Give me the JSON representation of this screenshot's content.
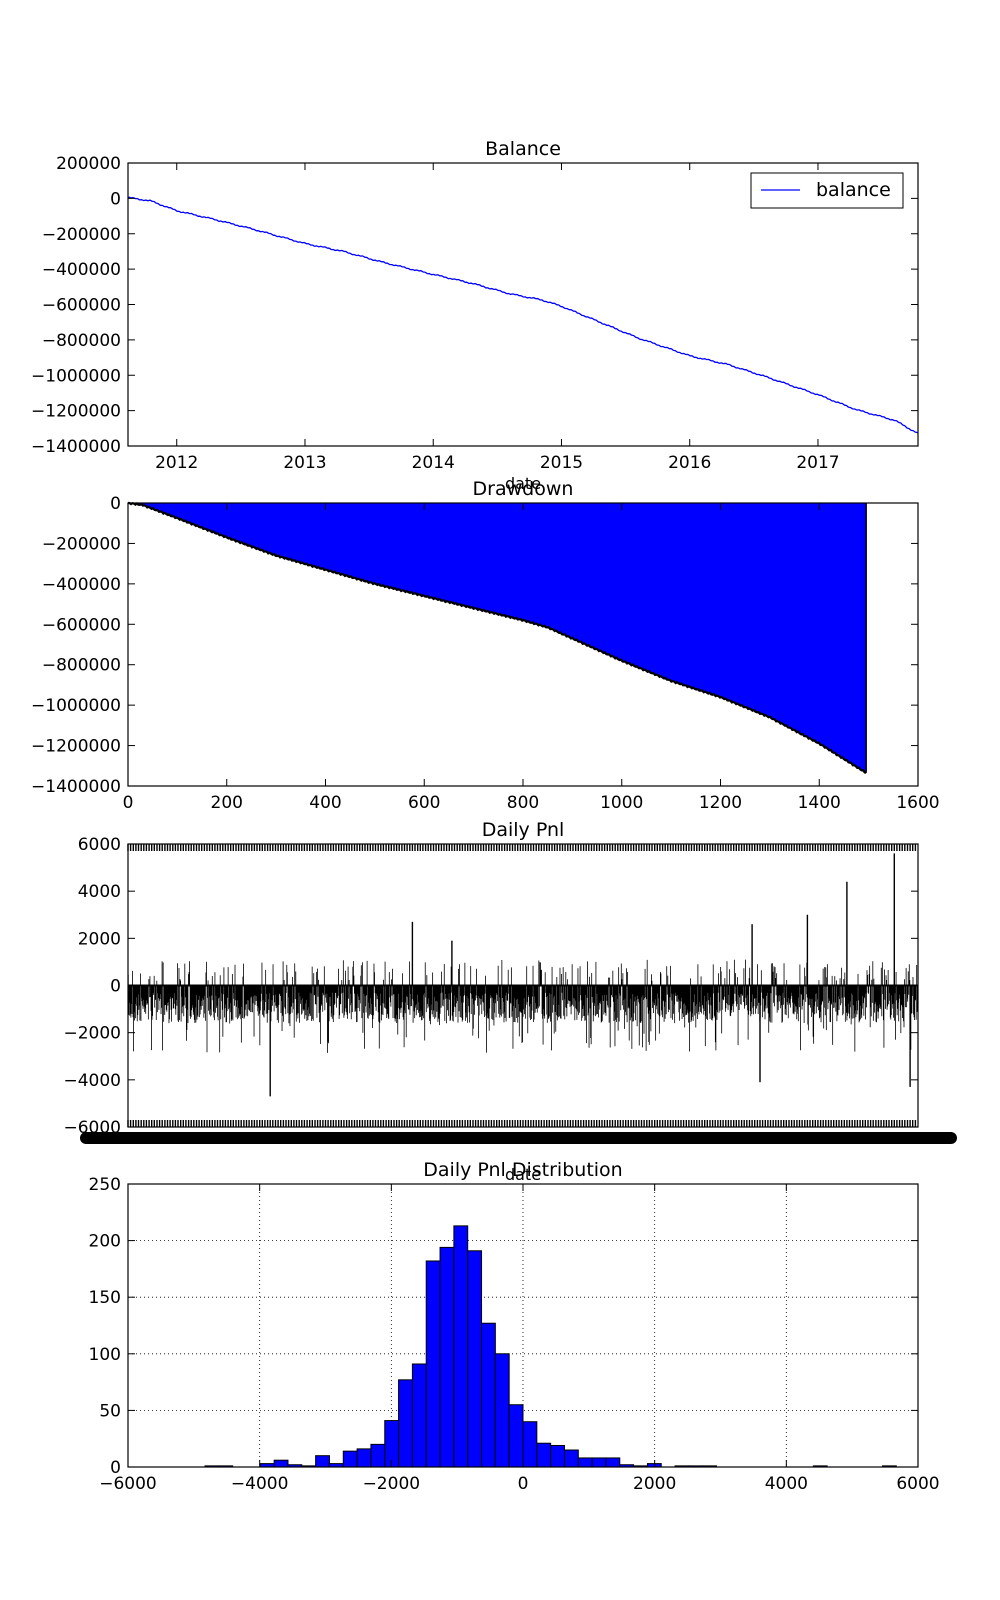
{
  "chart_data": [
    {
      "type": "line",
      "title": "Balance",
      "xlabel": "date",
      "ylabel": "",
      "x_tick_labels": [
        "2012",
        "2013",
        "2014",
        "2015",
        "2016",
        "2017"
      ],
      "x_tick_values": [
        2012,
        2013,
        2014,
        2015,
        2016,
        2017
      ],
      "xlim": [
        2011.62,
        2017.78
      ],
      "ylim": [
        -1400000,
        200000
      ],
      "y_ticks": [
        200000,
        0,
        -200000,
        -400000,
        -600000,
        -800000,
        -1000000,
        -1200000,
        -1400000
      ],
      "legend": {
        "position": "top-right",
        "entries": [
          "balance"
        ]
      },
      "color": "#0000ff",
      "series": [
        {
          "name": "balance",
          "x": [
            2011.62,
            2011.8,
            2012.0,
            2012.3,
            2012.6,
            2013.0,
            2013.3,
            2013.6,
            2014.0,
            2014.3,
            2014.6,
            2014.85,
            2015.0,
            2015.3,
            2015.6,
            2016.0,
            2016.3,
            2016.6,
            2017.0,
            2017.3,
            2017.6,
            2017.78
          ],
          "y": [
            5000,
            -15000,
            -70000,
            -120000,
            -175000,
            -255000,
            -300000,
            -360000,
            -430000,
            -480000,
            -540000,
            -575000,
            -610000,
            -700000,
            -790000,
            -890000,
            -940000,
            -1010000,
            -1110000,
            -1195000,
            -1255000,
            -1330000
          ]
        }
      ]
    },
    {
      "type": "area",
      "title": "Drawdown",
      "xlabel": "",
      "ylabel": "",
      "xlim": [
        0,
        1600
      ],
      "ylim": [
        -1400000,
        0
      ],
      "x_ticks": [
        0,
        200,
        400,
        600,
        800,
        1000,
        1200,
        1400,
        1600
      ],
      "y_ticks": [
        0,
        -200000,
        -400000,
        -600000,
        -800000,
        -1000000,
        -1200000,
        -1400000
      ],
      "color": "#0000ff",
      "series": [
        {
          "name": "",
          "x": [
            0,
            30,
            100,
            200,
            300,
            400,
            500,
            600,
            700,
            800,
            850,
            900,
            1000,
            1100,
            1200,
            1300,
            1400,
            1495
          ],
          "y": [
            0,
            -10000,
            -75000,
            -170000,
            -260000,
            -330000,
            -400000,
            -460000,
            -520000,
            -580000,
            -615000,
            -670000,
            -780000,
            -880000,
            -960000,
            -1060000,
            -1190000,
            -1335000
          ]
        }
      ]
    },
    {
      "type": "bar",
      "title": "Daily Pnl",
      "xlabel": "date",
      "ylabel": "",
      "ylim": [
        -6000,
        6000
      ],
      "y_ticks": [
        6000,
        4000,
        2000,
        0,
        -2000,
        -4000,
        -6000
      ],
      "color": "#000000",
      "notes_visible_pattern": "dense daily bars mostly between -2000 and 0 with spikes up to about 5600 and down to about -4700",
      "spikes": [
        {
          "pos": 0.18,
          "value": -4700
        },
        {
          "pos": 0.36,
          "value": 2700
        },
        {
          "pos": 0.41,
          "value": 1900
        },
        {
          "pos": 0.79,
          "value": 2600
        },
        {
          "pos": 0.8,
          "value": -4100
        },
        {
          "pos": 0.86,
          "value": 3000
        },
        {
          "pos": 0.91,
          "value": 4400
        },
        {
          "pos": 0.97,
          "value": 5600
        },
        {
          "pos": 0.99,
          "value": -4300
        }
      ]
    },
    {
      "type": "bar",
      "title": "Daily Pnl Distribution",
      "xlabel": "",
      "ylabel": "",
      "xlim": [
        -6000,
        6000
      ],
      "ylim": [
        0,
        250
      ],
      "x_ticks": [
        -6000,
        -4000,
        -2000,
        0,
        2000,
        4000,
        6000
      ],
      "y_ticks": [
        0,
        50,
        100,
        150,
        200,
        250
      ],
      "grid": true,
      "color": "#0000ff",
      "bin_width": 210,
      "bins": [
        {
          "x0": -4830,
          "count": 1
        },
        {
          "x0": -4620,
          "count": 1
        },
        {
          "x0": -3990,
          "count": 3
        },
        {
          "x0": -3780,
          "count": 6
        },
        {
          "x0": -3570,
          "count": 2
        },
        {
          "x0": -3360,
          "count": 1
        },
        {
          "x0": -3150,
          "count": 10
        },
        {
          "x0": -2940,
          "count": 3
        },
        {
          "x0": -2730,
          "count": 14
        },
        {
          "x0": -2520,
          "count": 16
        },
        {
          "x0": -2310,
          "count": 20
        },
        {
          "x0": -2100,
          "count": 41
        },
        {
          "x0": -1890,
          "count": 77
        },
        {
          "x0": -1680,
          "count": 91
        },
        {
          "x0": -1470,
          "count": 182
        },
        {
          "x0": -1260,
          "count": 194
        },
        {
          "x0": -1050,
          "count": 213
        },
        {
          "x0": -840,
          "count": 191
        },
        {
          "x0": -630,
          "count": 127
        },
        {
          "x0": -420,
          "count": 100
        },
        {
          "x0": -210,
          "count": 55
        },
        {
          "x0": 0,
          "count": 40
        },
        {
          "x0": 210,
          "count": 21
        },
        {
          "x0": 420,
          "count": 19
        },
        {
          "x0": 630,
          "count": 15
        },
        {
          "x0": 840,
          "count": 8
        },
        {
          "x0": 1050,
          "count": 8
        },
        {
          "x0": 1260,
          "count": 8
        },
        {
          "x0": 1470,
          "count": 2
        },
        {
          "x0": 1680,
          "count": 1
        },
        {
          "x0": 1890,
          "count": 3
        },
        {
          "x0": 2310,
          "count": 1
        },
        {
          "x0": 2520,
          "count": 1
        },
        {
          "x0": 2730,
          "count": 1
        },
        {
          "x0": 4410,
          "count": 1
        },
        {
          "x0": 5460,
          "count": 1
        }
      ]
    }
  ]
}
